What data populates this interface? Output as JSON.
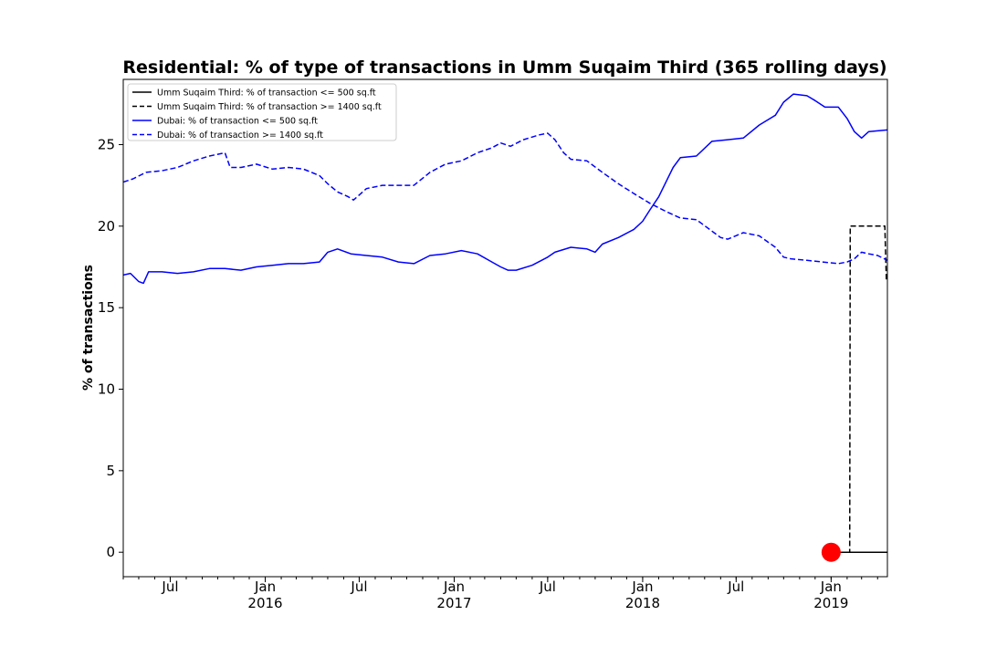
{
  "chart_data": {
    "type": "line",
    "title": "Residential: % of type of transactions in Umm Suqaim Third (365 rolling days)",
    "xlabel": "",
    "ylabel": "% of transactions",
    "x_range": [
      "2015-04-01",
      "2019-04-20"
    ],
    "ylim": [
      -1.5,
      29
    ],
    "y_ticks": [
      0,
      5,
      10,
      15,
      20,
      25
    ],
    "x_ticks": [
      {
        "date": "2015-07-01",
        "label": "Jul",
        "year": ""
      },
      {
        "date": "2016-01-01",
        "label": "Jan",
        "year": "2016"
      },
      {
        "date": "2016-07-01",
        "label": "Jul",
        "year": ""
      },
      {
        "date": "2017-01-01",
        "label": "Jan",
        "year": "2017"
      },
      {
        "date": "2017-07-01",
        "label": "Jul",
        "year": ""
      },
      {
        "date": "2018-01-01",
        "label": "Jan",
        "year": "2018"
      },
      {
        "date": "2018-07-01",
        "label": "Jul",
        "year": ""
      },
      {
        "date": "2019-01-01",
        "label": "Jan",
        "year": "2019"
      }
    ],
    "grid": false,
    "legend_position": "top-left",
    "series": [
      {
        "name": "Umm Suqaim Third: % of transaction <= 500 sq.ft",
        "color": "#000000",
        "dash": "solid",
        "points": [
          [
            "2019-01-01",
            0
          ],
          [
            "2019-04-20",
            0
          ]
        ]
      },
      {
        "name": "Umm Suqaim Third: % of transaction >= 1400 sq.ft",
        "color": "#000000",
        "dash": "dashed",
        "points": [
          [
            "2019-01-01",
            0
          ],
          [
            "2019-02-06",
            0
          ],
          [
            "2019-02-07",
            20
          ],
          [
            "2019-04-15",
            20
          ],
          [
            "2019-04-18",
            16.6
          ]
        ]
      },
      {
        "name": "Dubai: % of transaction <= 500 sq.ft",
        "color": "#0000ff",
        "dash": "solid",
        "points": [
          [
            "2015-04-01",
            17.0
          ],
          [
            "2015-04-15",
            17.1
          ],
          [
            "2015-05-01",
            16.6
          ],
          [
            "2015-05-10",
            16.5
          ],
          [
            "2015-05-20",
            17.2
          ],
          [
            "2015-06-15",
            17.2
          ],
          [
            "2015-07-15",
            17.1
          ],
          [
            "2015-08-15",
            17.2
          ],
          [
            "2015-09-15",
            17.4
          ],
          [
            "2015-10-15",
            17.4
          ],
          [
            "2015-11-15",
            17.3
          ],
          [
            "2015-12-15",
            17.5
          ],
          [
            "2016-01-15",
            17.6
          ],
          [
            "2016-02-15",
            17.7
          ],
          [
            "2016-03-15",
            17.7
          ],
          [
            "2016-04-15",
            17.8
          ],
          [
            "2016-05-01",
            18.4
          ],
          [
            "2016-05-20",
            18.6
          ],
          [
            "2016-06-15",
            18.3
          ],
          [
            "2016-07-15",
            18.2
          ],
          [
            "2016-08-15",
            18.1
          ],
          [
            "2016-09-15",
            17.8
          ],
          [
            "2016-10-15",
            17.7
          ],
          [
            "2016-11-15",
            18.2
          ],
          [
            "2016-12-15",
            18.3
          ],
          [
            "2017-01-15",
            18.5
          ],
          [
            "2017-02-15",
            18.3
          ],
          [
            "2017-03-15",
            17.8
          ],
          [
            "2017-04-01",
            17.5
          ],
          [
            "2017-04-15",
            17.3
          ],
          [
            "2017-05-01",
            17.3
          ],
          [
            "2017-06-01",
            17.6
          ],
          [
            "2017-07-01",
            18.1
          ],
          [
            "2017-07-15",
            18.4
          ],
          [
            "2017-08-15",
            18.7
          ],
          [
            "2017-09-15",
            18.6
          ],
          [
            "2017-10-01",
            18.4
          ],
          [
            "2017-10-15",
            18.9
          ],
          [
            "2017-11-15",
            19.3
          ],
          [
            "2017-12-15",
            19.8
          ],
          [
            "2018-01-01",
            20.3
          ],
          [
            "2018-01-15",
            21.0
          ],
          [
            "2018-02-01",
            21.8
          ],
          [
            "2018-02-15",
            22.7
          ],
          [
            "2018-03-01",
            23.6
          ],
          [
            "2018-03-15",
            24.2
          ],
          [
            "2018-04-15",
            24.3
          ],
          [
            "2018-05-15",
            25.2
          ],
          [
            "2018-06-15",
            25.3
          ],
          [
            "2018-07-15",
            25.4
          ],
          [
            "2018-08-15",
            26.2
          ],
          [
            "2018-09-15",
            26.8
          ],
          [
            "2018-10-01",
            27.6
          ],
          [
            "2018-10-20",
            28.1
          ],
          [
            "2018-11-15",
            28.0
          ],
          [
            "2018-12-01",
            27.7
          ],
          [
            "2018-12-20",
            27.3
          ],
          [
            "2019-01-15",
            27.3
          ],
          [
            "2019-02-01",
            26.6
          ],
          [
            "2019-02-15",
            25.8
          ],
          [
            "2019-03-01",
            25.4
          ],
          [
            "2019-03-15",
            25.8
          ],
          [
            "2019-04-20",
            25.9
          ]
        ]
      },
      {
        "name": "Dubai: % of transaction >= 1400 sq.ft",
        "color": "#0000ff",
        "dash": "dashed",
        "points": [
          [
            "2015-04-01",
            22.7
          ],
          [
            "2015-04-20",
            22.9
          ],
          [
            "2015-05-15",
            23.3
          ],
          [
            "2015-06-15",
            23.4
          ],
          [
            "2015-07-15",
            23.6
          ],
          [
            "2015-08-15",
            24.0
          ],
          [
            "2015-09-15",
            24.3
          ],
          [
            "2015-10-15",
            24.5
          ],
          [
            "2015-10-25",
            23.6
          ],
          [
            "2015-11-15",
            23.6
          ],
          [
            "2015-12-15",
            23.8
          ],
          [
            "2016-01-15",
            23.5
          ],
          [
            "2016-02-15",
            23.6
          ],
          [
            "2016-03-15",
            23.5
          ],
          [
            "2016-04-15",
            23.1
          ],
          [
            "2016-05-01",
            22.6
          ],
          [
            "2016-05-20",
            22.1
          ],
          [
            "2016-06-10",
            21.8
          ],
          [
            "2016-06-20",
            21.6
          ],
          [
            "2016-07-15",
            22.3
          ],
          [
            "2016-08-15",
            22.5
          ],
          [
            "2016-09-15",
            22.5
          ],
          [
            "2016-10-15",
            22.5
          ],
          [
            "2016-11-15",
            23.3
          ],
          [
            "2016-12-15",
            23.8
          ],
          [
            "2017-01-15",
            24.0
          ],
          [
            "2017-02-15",
            24.5
          ],
          [
            "2017-03-15",
            24.8
          ],
          [
            "2017-04-01",
            25.1
          ],
          [
            "2017-04-20",
            24.9
          ],
          [
            "2017-05-15",
            25.3
          ],
          [
            "2017-06-15",
            25.6
          ],
          [
            "2017-07-01",
            25.7
          ],
          [
            "2017-07-15",
            25.3
          ],
          [
            "2017-08-01",
            24.5
          ],
          [
            "2017-08-15",
            24.1
          ],
          [
            "2017-09-15",
            24.0
          ],
          [
            "2017-10-15",
            23.3
          ],
          [
            "2017-11-15",
            22.6
          ],
          [
            "2017-12-15",
            22.0
          ],
          [
            "2018-01-15",
            21.4
          ],
          [
            "2018-02-15",
            20.9
          ],
          [
            "2018-03-15",
            20.5
          ],
          [
            "2018-04-15",
            20.4
          ],
          [
            "2018-05-15",
            19.7
          ],
          [
            "2018-06-01",
            19.3
          ],
          [
            "2018-06-15",
            19.2
          ],
          [
            "2018-07-15",
            19.6
          ],
          [
            "2018-08-15",
            19.4
          ],
          [
            "2018-09-15",
            18.7
          ],
          [
            "2018-10-01",
            18.1
          ],
          [
            "2018-10-15",
            18.0
          ],
          [
            "2018-11-15",
            17.9
          ],
          [
            "2018-12-15",
            17.8
          ],
          [
            "2019-01-15",
            17.7
          ],
          [
            "2019-02-01",
            17.8
          ],
          [
            "2019-02-15",
            18.0
          ],
          [
            "2019-03-01",
            18.4
          ],
          [
            "2019-03-15",
            18.3
          ],
          [
            "2019-04-01",
            18.2
          ],
          [
            "2019-04-20",
            17.9
          ]
        ]
      }
    ],
    "annotations": [
      {
        "type": "marker",
        "shape": "circle",
        "color": "#ff0000",
        "x": "2019-01-01",
        "y": 0
      }
    ]
  }
}
